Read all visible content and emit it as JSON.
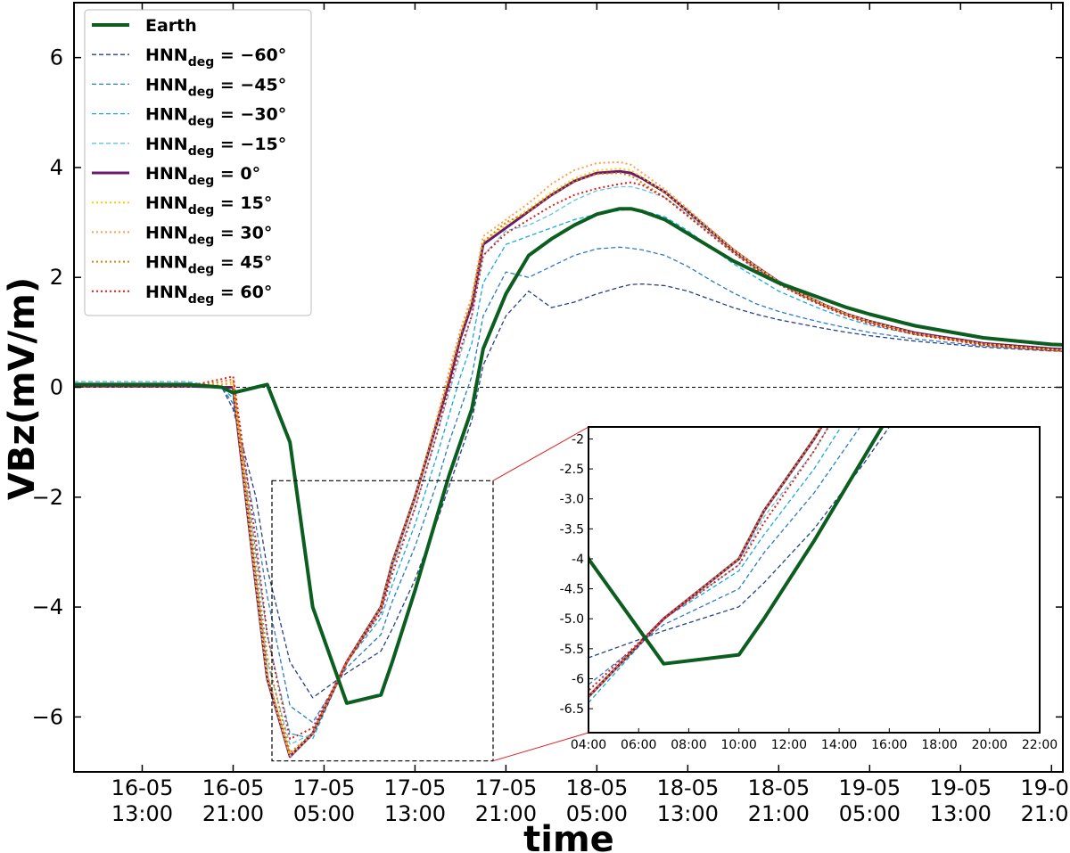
{
  "chart_data": {
    "type": "line",
    "xlabel": "time",
    "ylabel": "VBz(mV/m)",
    "ylim": [
      -7,
      7
    ],
    "yticks": [
      -6,
      -4,
      -2,
      0,
      2,
      4,
      6
    ],
    "ytick_labels": [
      "−6",
      "−4",
      "−2",
      "0",
      "2",
      "4",
      "6"
    ],
    "xlim": [
      "2015-05-16 07:00",
      "2015-05-19 22:00"
    ],
    "xtick_labels": [
      {
        "date": "16-05",
        "time": "13:00"
      },
      {
        "date": "16-05",
        "time": "21:00"
      },
      {
        "date": "17-05",
        "time": "05:00"
      },
      {
        "date": "17-05",
        "time": "13:00"
      },
      {
        "date": "17-05",
        "time": "21:00"
      },
      {
        "date": "18-05",
        "time": "05:00"
      },
      {
        "date": "18-05",
        "time": "13:00"
      },
      {
        "date": "18-05",
        "time": "21:00"
      },
      {
        "date": "19-05",
        "time": "05:00"
      },
      {
        "date": "19-05",
        "time": "13:00"
      },
      {
        "date": "19-05",
        "time": "21:00"
      }
    ],
    "reference_line": {
      "y": 0,
      "style": "dashed"
    },
    "legend_position": "top-left",
    "x_time_hours": [
      0,
      10,
      13,
      14,
      16,
      17,
      19,
      21,
      24,
      27,
      28,
      30,
      32,
      33,
      34,
      35,
      36,
      38,
      40,
      42,
      44,
      46,
      48,
      49,
      50,
      52,
      54,
      56,
      58,
      60,
      62,
      64,
      66,
      68,
      70,
      74,
      80,
      86,
      92
    ],
    "series": [
      {
        "name": "Earth",
        "color": "#0b5e1f",
        "style": "solid",
        "width": 4,
        "values": [
          0.05,
          0.05,
          0.0,
          -0.1,
          0.0,
          0.05,
          -1.0,
          -4.0,
          -5.75,
          -5.6,
          -5.0,
          -3.7,
          -2.3,
          -1.6,
          -1.0,
          -0.4,
          0.7,
          1.7,
          2.4,
          2.7,
          2.95,
          3.15,
          3.25,
          3.25,
          3.2,
          3.05,
          2.8,
          2.55,
          2.3,
          2.1,
          1.9,
          1.75,
          1.6,
          1.45,
          1.33,
          1.12,
          0.9,
          0.78,
          0.73
        ]
      },
      {
        "name": "HNN_deg = −60°",
        "color": "#27408b",
        "style": "dashed",
        "width": 1.3,
        "values": [
          0.1,
          0.1,
          0.0,
          -0.4,
          -2.0,
          -3.3,
          -5.0,
          -5.65,
          -5.2,
          -4.8,
          -4.4,
          -3.5,
          -2.4,
          -1.8,
          -1.2,
          -0.6,
          0.4,
          1.3,
          1.75,
          1.45,
          1.55,
          1.7,
          1.82,
          1.87,
          1.88,
          1.85,
          1.75,
          1.6,
          1.45,
          1.33,
          1.23,
          1.15,
          1.07,
          1.0,
          0.94,
          0.84,
          0.73,
          0.66,
          0.62
        ]
      },
      {
        "name": "HNN_deg = −45°",
        "color": "#2b7bc6",
        "style": "dashed",
        "width": 1.3,
        "values": [
          0.1,
          0.1,
          0.0,
          -0.3,
          -2.5,
          -3.8,
          -5.8,
          -6.1,
          -5.1,
          -4.5,
          -3.9,
          -2.9,
          -1.7,
          -1.0,
          -0.4,
          0.2,
          1.3,
          2.1,
          2.0,
          2.2,
          2.4,
          2.52,
          2.55,
          2.53,
          2.5,
          2.4,
          2.2,
          1.95,
          1.72,
          1.52,
          1.38,
          1.27,
          1.17,
          1.08,
          1.0,
          0.88,
          0.75,
          0.67,
          0.63
        ]
      },
      {
        "name": "HNN_deg = −30°",
        "color": "#1aa8e0",
        "style": "dashed",
        "width": 1.3,
        "values": [
          0.1,
          0.1,
          0.0,
          -0.2,
          -3.0,
          -4.5,
          -6.3,
          -6.4,
          -5.0,
          -4.2,
          -3.6,
          -2.5,
          -1.2,
          -0.5,
          0.2,
          0.8,
          1.9,
          2.6,
          2.75,
          2.9,
          3.05,
          3.15,
          3.22,
          3.24,
          3.22,
          3.1,
          2.85,
          2.55,
          2.25,
          2.0,
          1.75,
          1.57,
          1.4,
          1.25,
          1.13,
          0.96,
          0.79,
          0.69,
          0.64
        ]
      },
      {
        "name": "HNN_deg = −15°",
        "color": "#5bc5e5",
        "style": "dashed",
        "width": 1.3,
        "values": [
          0.1,
          0.1,
          0.0,
          -0.1,
          -3.4,
          -5.0,
          -6.5,
          -6.3,
          -5.0,
          -4.1,
          -3.3,
          -2.2,
          -0.8,
          -0.1,
          0.6,
          1.3,
          2.4,
          2.85,
          2.95,
          3.15,
          3.4,
          3.58,
          3.65,
          3.65,
          3.6,
          3.45,
          3.15,
          2.8,
          2.45,
          2.15,
          1.88,
          1.66,
          1.48,
          1.32,
          1.18,
          0.98,
          0.8,
          0.7,
          0.65
        ]
      },
      {
        "name": "HNN_deg = 0°",
        "color": "#6a1a6e",
        "style": "solid",
        "width": 3,
        "values": [
          0.02,
          0.02,
          0.0,
          0.0,
          -3.6,
          -5.3,
          -6.72,
          -6.3,
          -5.0,
          -4.0,
          -3.2,
          -2.0,
          -0.6,
          0.1,
          0.9,
          1.5,
          2.6,
          2.9,
          3.2,
          3.5,
          3.75,
          3.9,
          3.93,
          3.9,
          3.8,
          3.55,
          3.2,
          2.85,
          2.5,
          2.2,
          1.92,
          1.7,
          1.5,
          1.33,
          1.2,
          0.99,
          0.8,
          0.7,
          0.65
        ]
      },
      {
        "name": "HNN_deg = 15°",
        "color": "#ffcc00",
        "style": "dotted",
        "width": 2,
        "values": [
          0.02,
          0.02,
          0.05,
          0.05,
          -3.6,
          -5.3,
          -6.7,
          -6.3,
          -5.0,
          -4.0,
          -3.2,
          -2.0,
          -0.5,
          0.2,
          1.0,
          1.6,
          2.65,
          2.95,
          3.25,
          3.55,
          3.8,
          3.95,
          3.98,
          3.95,
          3.82,
          3.55,
          3.2,
          2.85,
          2.5,
          2.2,
          1.92,
          1.7,
          1.5,
          1.33,
          1.2,
          0.98,
          0.79,
          0.69,
          0.64
        ]
      },
      {
        "name": "HNN_deg = 30°",
        "color": "#ff9f4a",
        "style": "dotted",
        "width": 2,
        "values": [
          0.02,
          0.02,
          0.05,
          0.1,
          -3.5,
          -5.2,
          -6.72,
          -6.3,
          -5.0,
          -4.0,
          -3.2,
          -2.0,
          -0.5,
          0.3,
          1.05,
          1.65,
          2.75,
          3.05,
          3.35,
          3.7,
          3.95,
          4.08,
          4.1,
          4.05,
          3.9,
          3.6,
          3.25,
          2.88,
          2.52,
          2.2,
          1.92,
          1.7,
          1.5,
          1.32,
          1.18,
          0.97,
          0.78,
          0.68,
          0.63
        ]
      },
      {
        "name": "HNN_deg = 45°",
        "color": "#d98300",
        "style": "dotted",
        "width": 2,
        "values": [
          0.02,
          0.02,
          0.1,
          0.15,
          -3.2,
          -4.9,
          -6.65,
          -6.3,
          -5.0,
          -4.0,
          -3.2,
          -2.0,
          -0.6,
          0.2,
          0.95,
          1.55,
          2.65,
          3.0,
          3.2,
          3.5,
          3.75,
          3.88,
          3.9,
          3.85,
          3.72,
          3.45,
          3.12,
          2.78,
          2.45,
          2.15,
          1.88,
          1.66,
          1.47,
          1.3,
          1.16,
          0.96,
          0.77,
          0.67,
          0.62
        ]
      },
      {
        "name": "HNN_deg = 60°",
        "color": "#e11b1b",
        "style": "dotted",
        "width": 2,
        "values": [
          0.02,
          0.02,
          0.15,
          0.2,
          -2.8,
          -4.5,
          -6.4,
          -6.2,
          -5.0,
          -4.1,
          -3.4,
          -2.2,
          -0.8,
          0.0,
          0.7,
          1.3,
          2.4,
          2.8,
          3.05,
          3.3,
          3.5,
          3.62,
          3.7,
          3.73,
          3.68,
          3.45,
          3.12,
          2.78,
          2.45,
          2.15,
          1.88,
          1.66,
          1.47,
          1.3,
          1.16,
          0.96,
          0.77,
          0.67,
          0.62
        ]
      }
    ],
    "inset": {
      "xtick_labels": [
        "04:00",
        "06:00",
        "08:00",
        "10:00",
        "12:00",
        "14:00",
        "16:00",
        "18:00",
        "20:00",
        "22:00"
      ],
      "ytick_labels": [
        "-2",
        "-2.5",
        "-3.0",
        "-3.5",
        "-4",
        "-4.5",
        "-5.0",
        "-5.5",
        "-6",
        "-6.5"
      ],
      "yticks": [
        -2,
        -2.5,
        -3,
        -3.5,
        -4,
        -4.5,
        -5,
        -5.5,
        -6,
        -6.5
      ],
      "xlim_hours": [
        21,
        39
      ],
      "ylim": [
        -6.9,
        -1.8
      ],
      "zoom_box_x_hours": [
        21,
        39
      ],
      "zoom_box_y": [
        -6.8,
        -1.7
      ]
    }
  },
  "legend": [
    {
      "base": "HNN",
      "sub": "deg",
      "rest": " = −60°"
    }
  ],
  "legend_labels": {
    "earth": "Earth",
    "prefix": "HNN",
    "subscript": "deg",
    "suffixes": [
      "",
      " =  −60°",
      " =  −45°",
      " =  −30°",
      " =  −15°",
      " =  0°",
      " =  15°",
      " =  30°",
      " =  45°",
      " =  60°"
    ]
  }
}
